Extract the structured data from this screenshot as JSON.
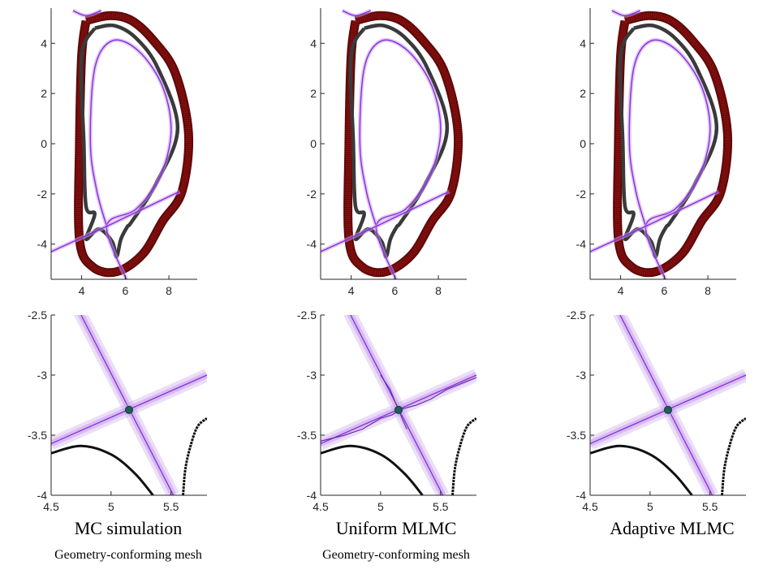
{
  "colors": {
    "wall": "#8b1010",
    "wall_edge": "#5e0808",
    "separatrix": "#8a2be2",
    "separatrix_band": "#c7a0ea",
    "divertor": "#3a3a3a",
    "xpoint": "#1e5f5a",
    "axis": "#262626"
  },
  "panels": [
    {
      "caption": "MC simulation",
      "subcaption": "Geometry-conforming mesh",
      "variant": "mc"
    },
    {
      "caption": "Uniform MLMC",
      "subcaption": "Geometry-conforming mesh",
      "variant": "uniform"
    },
    {
      "caption": "Adaptive MLMC",
      "subcaption": "",
      "variant": "adaptive"
    }
  ],
  "chart_data": [
    {
      "type": "line",
      "title": "",
      "xlim": [
        2.6,
        9.3
      ],
      "ylim": [
        -5.4,
        5.4
      ],
      "xticks": [
        4,
        6,
        8
      ],
      "yticks": [
        4,
        2,
        0,
        -2,
        -4
      ],
      "grid": false,
      "series": [
        {
          "role": "wall",
          "x": [
            4.2,
            5.3,
            6.3,
            7.3,
            8.3,
            8.9,
            8.6,
            7.7,
            6.8,
            5.6,
            4.5,
            3.9,
            3.9,
            4.0,
            4.2
          ],
          "y": [
            4.9,
            5.1,
            4.9,
            4.1,
            2.8,
            0.4,
            -1.9,
            -3.1,
            -4.4,
            -5.1,
            -4.9,
            -3.8,
            0,
            3.5,
            4.9
          ]
        },
        {
          "role": "divertor",
          "x": [
            4.6,
            5.5,
            6.5,
            7.5,
            8.4,
            7.4,
            6.3,
            6.1,
            5.8,
            5.6,
            5.4,
            4.8,
            4.2,
            4.6,
            4.2,
            4.1,
            4.0,
            4.6
          ],
          "y": [
            4.6,
            4.7,
            4.2,
            3.0,
            0.6,
            -1.6,
            -3.1,
            -3.3,
            -3.8,
            -4.5,
            -3.9,
            -3.4,
            -3.8,
            -2.8,
            -2.5,
            0,
            3.5,
            4.6
          ]
        },
        {
          "role": "separatrix",
          "x": [
            5.15,
            4.7,
            4.4,
            4.6,
            5.4,
            6.6,
            7.7,
            8.1,
            7.6,
            6.5,
            5.15,
            6.1
          ],
          "y": [
            -3.29,
            -1.9,
            0,
            3.0,
            4.1,
            3.7,
            2.3,
            0.5,
            -1.3,
            -2.6,
            -3.29,
            -5.5
          ]
        },
        {
          "role": "separatrix-leg",
          "x": [
            2.6,
            5.15,
            8.5
          ],
          "y": [
            -4.3,
            -3.29,
            -1.9
          ]
        },
        {
          "role": "separatrix-top",
          "x": [
            3.6,
            4.2,
            4.9
          ],
          "y": [
            5.3,
            5.1,
            5.3
          ]
        }
      ]
    },
    {
      "type": "line",
      "title": "",
      "xlim": [
        4.5,
        5.8
      ],
      "ylim": [
        -4,
        -2.5
      ],
      "xticks": [
        4.5,
        5,
        5.5
      ],
      "yticks": [
        -2.5,
        -3,
        -3.5,
        -4
      ],
      "grid": false,
      "xpoint": {
        "x": 5.15,
        "y": -3.29
      },
      "series": [
        {
          "role": "separatrix-a",
          "x": [
            4.74,
            5.52
          ],
          "y": [
            -2.48,
            -4.0
          ]
        },
        {
          "role": "separatrix-b",
          "x": [
            4.5,
            5.8
          ],
          "y": [
            -3.57,
            -3.0
          ]
        },
        {
          "role": "divertor-left",
          "x": [
            4.5,
            4.75,
            5.0,
            5.2,
            5.35
          ],
          "y": [
            -3.65,
            -3.59,
            -3.66,
            -3.82,
            -4.0
          ]
        },
        {
          "role": "divertor-right",
          "x": [
            5.6,
            5.62,
            5.66,
            5.72,
            5.8
          ],
          "y": [
            -4.0,
            -3.78,
            -3.6,
            -3.43,
            -3.36
          ]
        }
      ]
    }
  ]
}
